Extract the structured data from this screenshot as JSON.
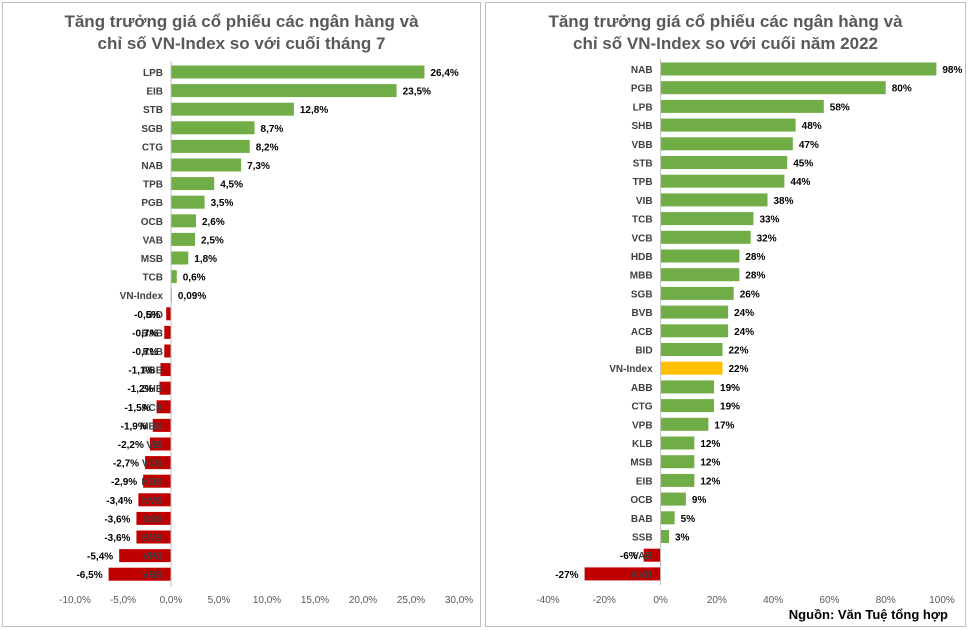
{
  "chart_data": [
    {
      "type": "bar",
      "orientation": "horizontal",
      "title_lines": [
        "Tăng trưởng giá cổ phiếu  các ngân hàng và",
        "chỉ số VN-Index  so với cuối  tháng 7"
      ],
      "categories": [
        "LPB",
        "EIB",
        "STB",
        "SGB",
        "CTG",
        "NAB",
        "TPB",
        "PGB",
        "OCB",
        "VAB",
        "MSB",
        "TCB",
        "VN-Index",
        "BID",
        "BAB",
        "KLB",
        "ABB",
        "SHB",
        "ACB",
        "MBB",
        "VIB",
        "VCB",
        "HDB",
        "NVB",
        "SSB",
        "BVB",
        "VPB",
        "VBB"
      ],
      "values": [
        26.4,
        23.5,
        12.8,
        8.7,
        8.2,
        7.3,
        4.5,
        3.5,
        2.6,
        2.5,
        1.8,
        0.6,
        0.09,
        -0.5,
        -0.7,
        -0.7,
        -1.1,
        -1.2,
        -1.5,
        -1.9,
        -2.2,
        -2.7,
        -2.9,
        -3.4,
        -3.6,
        -3.6,
        -5.4,
        -6.5
      ],
      "data_labels": [
        "26,4%",
        "23,5%",
        "12,8%",
        "8,7%",
        "8,2%",
        "7,3%",
        "4,5%",
        "3,5%",
        "2,6%",
        "2,5%",
        "1,8%",
        "0,6%",
        "0,09%",
        "-0,5%",
        "-0,7%",
        "-0,7%",
        "-1,1%",
        "-1,2%",
        "-1,5%",
        "-1,9%",
        "-2,2%",
        "-2,7%",
        "-2,9%",
        "-3,4%",
        "-3,6%",
        "-3,6%",
        "-5,4%",
        "-6,5%"
      ],
      "xlim": [
        -10,
        30
      ],
      "ticks": [
        -10,
        -5,
        0,
        5,
        10,
        15,
        20,
        25,
        30
      ],
      "tick_labels": [
        "-10,0%",
        "-5,0%",
        "0,0%",
        "5,0%",
        "10,0%",
        "15,0%",
        "20,0%",
        "25,0%",
        "30,0%"
      ],
      "grid": false,
      "colors": {
        "positive": "#70ad47",
        "negative": "#c00000"
      }
    },
    {
      "type": "bar",
      "orientation": "horizontal",
      "title_lines": [
        "Tăng trưởng giá cổ phiếu  các ngân hàng và",
        "chỉ số VN-Index  so với cuối  năm 2022"
      ],
      "categories": [
        "NAB",
        "PGB",
        "LPB",
        "SHB",
        "VBB",
        "STB",
        "TPB",
        "VIB",
        "TCB",
        "VCB",
        "HDB",
        "MBB",
        "SGB",
        "BVB",
        "ACB",
        "BID",
        "VN-Index",
        "ABB",
        "CTG",
        "VPB",
        "KLB",
        "MSB",
        "EIB",
        "OCB",
        "BAB",
        "SSB",
        "VAB",
        "NVB"
      ],
      "values": [
        98,
        80,
        58,
        48,
        47,
        45,
        44,
        38,
        33,
        32,
        28,
        28,
        26,
        24,
        24,
        22,
        22,
        19,
        19,
        17,
        12,
        12,
        12,
        9,
        5,
        3,
        -6,
        -27
      ],
      "data_labels": [
        "98%",
        "80%",
        "58%",
        "48%",
        "47%",
        "45%",
        "44%",
        "38%",
        "33%",
        "32%",
        "28%",
        "28%",
        "26%",
        "24%",
        "24%",
        "22%",
        "22%",
        "19%",
        "19%",
        "17%",
        "12%",
        "12%",
        "12%",
        "9%",
        "5%",
        "3%",
        "-6%",
        "-27%"
      ],
      "xlim": [
        -40,
        100
      ],
      "ticks": [
        -40,
        -20,
        0,
        20,
        40,
        60,
        80,
        100
      ],
      "tick_labels": [
        "-40%",
        "-20%",
        "0%",
        "20%",
        "40%",
        "60%",
        "80%",
        "100%"
      ],
      "grid": false,
      "highlight_category": "VN-Index",
      "colors": {
        "positive": "#70ad47",
        "negative": "#c00000",
        "highlight": "#ffc000"
      }
    }
  ],
  "source_note": "Nguồn: Văn Tuệ tổng hợp"
}
